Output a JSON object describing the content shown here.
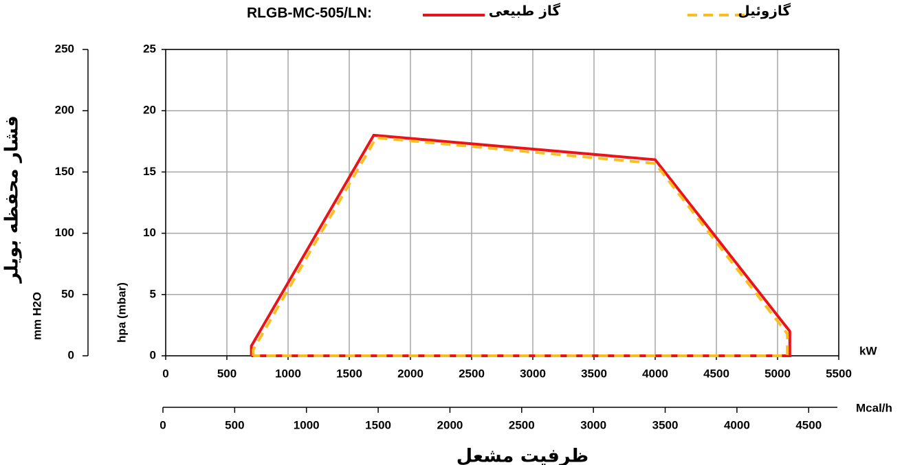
{
  "chart_data": {
    "type": "line",
    "title": "RLGB-MC-505/LN:",
    "x_label": "ظرفیت مشعل",
    "x_unit": "kW",
    "x2_unit": "Mcal/h",
    "y_label": "hpa (mbar)",
    "y2_label": "فشار محفظه بویلر",
    "y2_unit": "mm H2O",
    "xlim": [
      0,
      5500
    ],
    "xticks": [
      0,
      500,
      1000,
      1500,
      2000,
      2500,
      3000,
      3500,
      4000,
      4500,
      5000,
      5500
    ],
    "x2lim": [
      0,
      4700
    ],
    "x2ticks": [
      0,
      500,
      1000,
      1500,
      2000,
      2500,
      3000,
      3500,
      4000,
      4500
    ],
    "ylim": [
      0,
      25
    ],
    "yticks": [
      0,
      5,
      10,
      15,
      20,
      25
    ],
    "y2lim": [
      0,
      250
    ],
    "y2ticks": [
      0,
      50,
      100,
      150,
      200,
      250
    ],
    "grid": true,
    "series": [
      {
        "name": "گاز طبیعی",
        "color": "#e8141a",
        "dashed": false,
        "x": [
          700,
          700,
          1700,
          4000,
          5100,
          5100,
          700
        ],
        "values": [
          0,
          0.8,
          18,
          16,
          2,
          0,
          0
        ]
      },
      {
        "name": "گازوئیل",
        "color": "#fbbd1f",
        "dashed": true,
        "x": [
          715,
          715,
          1720,
          4000,
          5080,
          5080,
          715
        ],
        "values": [
          0,
          0.5,
          17.8,
          15.7,
          1.8,
          0,
          0
        ]
      }
    ]
  }
}
